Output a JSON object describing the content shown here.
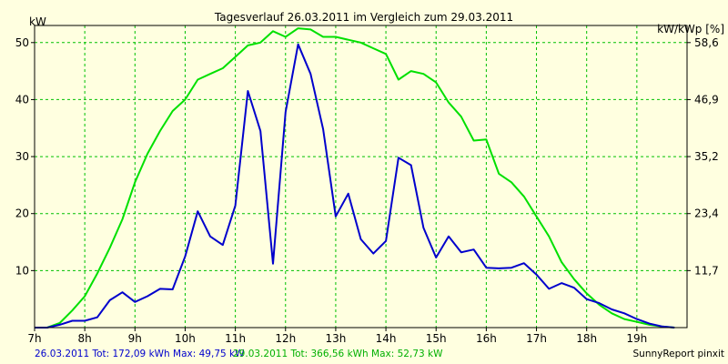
{
  "chart_data": {
    "type": "line",
    "title": "Tagesverlauf 26.03.2011 im Vergleich zum 29.03.2011",
    "ylabel_left": "kW",
    "ylabel_right": "kW/kWp [%]",
    "ylim": [
      0,
      53
    ],
    "xlim": [
      7,
      20
    ],
    "grid": true,
    "y_ticks_left": [
      {
        "value": 10,
        "label": "10"
      },
      {
        "value": 20,
        "label": "20"
      },
      {
        "value": 30,
        "label": "30"
      },
      {
        "value": 40,
        "label": "40"
      },
      {
        "value": 50,
        "label": "50"
      }
    ],
    "y_ticks_right": [
      {
        "value": 10,
        "label": "11,7"
      },
      {
        "value": 20,
        "label": "23,4"
      },
      {
        "value": 30,
        "label": "35,2"
      },
      {
        "value": 40,
        "label": "46,9"
      },
      {
        "value": 50,
        "label": "58,6"
      }
    ],
    "x_ticks": [
      {
        "value": 7,
        "label": "7h"
      },
      {
        "value": 8,
        "label": "8h"
      },
      {
        "value": 9,
        "label": "9h"
      },
      {
        "value": 10,
        "label": "10h"
      },
      {
        "value": 11,
        "label": "11h"
      },
      {
        "value": 12,
        "label": "12h"
      },
      {
        "value": 13,
        "label": "13h"
      },
      {
        "value": 14,
        "label": "14h"
      },
      {
        "value": 15,
        "label": "15h"
      },
      {
        "value": 16,
        "label": "16h"
      },
      {
        "value": 17,
        "label": "17h"
      },
      {
        "value": 18,
        "label": "18h"
      },
      {
        "value": 19,
        "label": "19h"
      }
    ],
    "series": [
      {
        "color": "#0000cc",
        "x": [
          7.0,
          7.25,
          7.5,
          7.75,
          8.0,
          8.25,
          8.5,
          8.75,
          9.0,
          9.25,
          9.5,
          9.75,
          10.0,
          10.25,
          10.5,
          10.75,
          11.0,
          11.25,
          11.5,
          11.75,
          12.0,
          12.25,
          12.5,
          12.75,
          13.0,
          13.25,
          13.5,
          13.75,
          14.0,
          14.25,
          14.5,
          14.75,
          15.0,
          15.25,
          15.5,
          15.75,
          16.0,
          16.25,
          16.5,
          16.75,
          17.0,
          17.25,
          17.5,
          17.75,
          18.0,
          18.25,
          18.5,
          18.75,
          19.0,
          19.25,
          19.5,
          19.75
        ],
        "y": [
          0,
          0,
          0.5,
          1.2,
          1.2,
          1.8,
          4.8,
          6.2,
          4.5,
          5.5,
          6.8,
          6.7,
          12.5,
          20.4,
          16.0,
          14.5,
          21.4,
          41.5,
          34.5,
          11.2,
          37.8,
          49.7,
          44.5,
          34.8,
          19.5,
          23.5,
          15.5,
          13.0,
          15.2,
          29.8,
          28.5,
          17.5,
          12.3,
          16.0,
          13.2,
          13.7,
          10.5,
          10.4,
          10.5,
          11.3,
          9.3,
          6.8,
          7.8,
          7.0,
          5.0,
          4.3,
          3.2,
          2.5,
          1.5,
          0.7,
          0.2,
          0
        ]
      },
      {
        "color": "#00e000",
        "x": [
          7.0,
          7.25,
          7.5,
          7.75,
          8.0,
          8.25,
          8.5,
          8.75,
          9.0,
          9.25,
          9.5,
          9.75,
          10.0,
          10.25,
          10.5,
          10.75,
          11.0,
          11.25,
          11.5,
          11.75,
          12.0,
          12.25,
          12.5,
          12.75,
          13.0,
          13.25,
          13.5,
          13.75,
          14.0,
          14.25,
          14.5,
          14.75,
          15.0,
          15.25,
          15.5,
          15.75,
          16.0,
          16.25,
          16.5,
          16.75,
          17.0,
          17.25,
          17.5,
          17.75,
          18.0,
          18.25,
          18.5,
          18.75,
          19.0,
          19.25,
          19.5,
          19.75
        ],
        "y": [
          0,
          0,
          0.8,
          3.0,
          5.5,
          9.5,
          14.0,
          19.0,
          25.5,
          30.5,
          34.5,
          38.0,
          40.0,
          43.5,
          44.5,
          45.5,
          47.5,
          49.5,
          50.0,
          52.0,
          51.0,
          52.5,
          52.3,
          51.0,
          51.0,
          50.5,
          50.0,
          49.0,
          48.0,
          43.5,
          45.0,
          44.5,
          43.0,
          39.5,
          37.0,
          32.8,
          33.0,
          27.0,
          25.5,
          23.0,
          19.5,
          16.0,
          11.5,
          8.5,
          6.0,
          4.0,
          2.5,
          1.5,
          1.0,
          0.5,
          0.2,
          0
        ]
      }
    ],
    "footer": {
      "day1_summary": "26.03.2011 Tot: 172,09 kWh Max: 49,75 kW",
      "day2_summary": "29.03.2011 Tot: 366,56 kWh Max: 52,73 kW",
      "credit": "SunnyReport pinxit"
    }
  },
  "colors": {
    "background": "#ffffe0",
    "grid": "#00c000",
    "axis": "#000000",
    "series_day1": "#0000cc",
    "series_day2": "#00e000"
  }
}
